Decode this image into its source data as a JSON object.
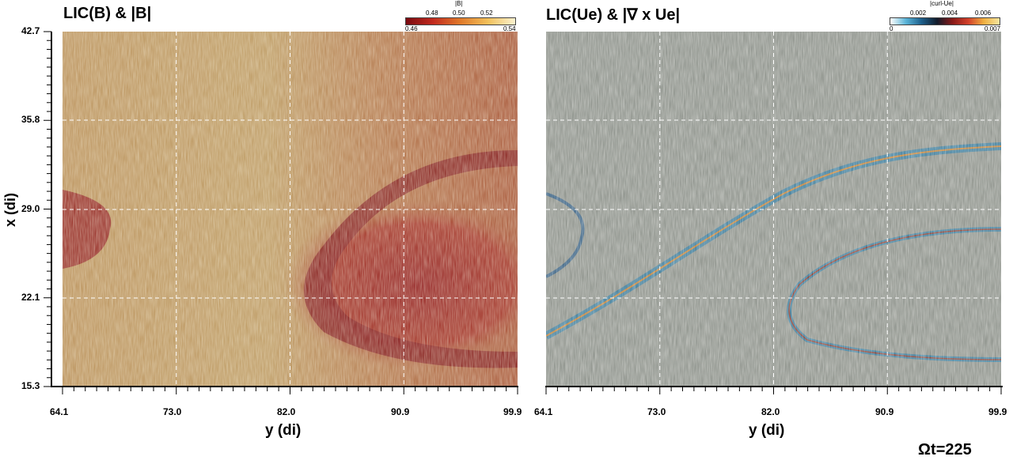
{
  "left_panel": {
    "title": "LIC(B) & |B|",
    "colorbar": {
      "label": "|B|",
      "min": "0.46",
      "max": "0.54",
      "ticks": [
        "0.48",
        "0.50",
        "0.52"
      ]
    },
    "x_ticks": [
      "64.1",
      "73.0",
      "82.0",
      "90.9",
      "99.9"
    ],
    "y_ticks": [
      "42.7",
      "35.8",
      "29.0",
      "22.1",
      "15.3"
    ],
    "xlabel": "y (di)",
    "ylabel": "x (di)"
  },
  "right_panel": {
    "title": "LIC(Ue) & |∇ x Ue|",
    "colorbar": {
      "label": "|curl-Ue|",
      "min": "0",
      "max": "0.007",
      "ticks": [
        "0.002",
        "0.004",
        "0.006"
      ]
    },
    "x_ticks": [
      "64.1",
      "73.0",
      "82.0",
      "90.9",
      "99.9"
    ],
    "xlabel": "y (di)"
  },
  "timestamp": "Ωt=225",
  "colors": {
    "field_dark_red": "#8a0f14",
    "field_tan": "#b89a5a",
    "flow_gray": "#8c918a",
    "sheet_blue": "#1c6e9a"
  }
}
